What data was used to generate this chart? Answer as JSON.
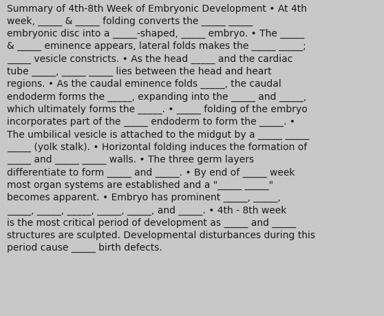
{
  "background_color": "#c8c8c8",
  "text_color": "#1a1a1a",
  "font_size": 10.0,
  "font_family": "DejaVu Sans",
  "fig_width": 5.58,
  "fig_height": 4.6,
  "dpi": 100,
  "lines": [
    "Summary of 4th-8th Week of Embryonic Development • At 4th",
    "week, _____ & _____ folding converts the _____ _____",
    "embryonic disc into a _____-shaped, _____ embryo. • The _____",
    "& _____ eminence appears, lateral folds makes the _____ _____;",
    "_____ vesicle constricts. • As the head _____ and the cardiac",
    "tube _____, _____ _____ lies between the head and heart",
    "regions. • As the caudal eminence folds _____, the caudal",
    "endoderm forms the _____, expanding into the _____ and _____,",
    "which ultimately forms the _____. • _____ folding of the embryo",
    "incorporates part of the _____ endoderm to form the _____. •",
    "The umbilical vesicle is attached to the midgut by a _____ _____",
    "_____ (yolk stalk). • Horizontal folding induces the formation of",
    "_____ and _____ _____ walls. • The three germ layers",
    "differentiate to form _____ and _____. • By end of _____ week",
    "most organ systems are established and a \"_____ _____\"",
    "becomes apparent. • Embryo has prominent _____, _____,",
    "_____, _____, _____, _____, _____, and _____. • 4th - 8th week",
    "is the most critical period of development as _____ and _____",
    "structures are sculpted. Developmental disturbances during this",
    "period cause _____ birth defects."
  ]
}
